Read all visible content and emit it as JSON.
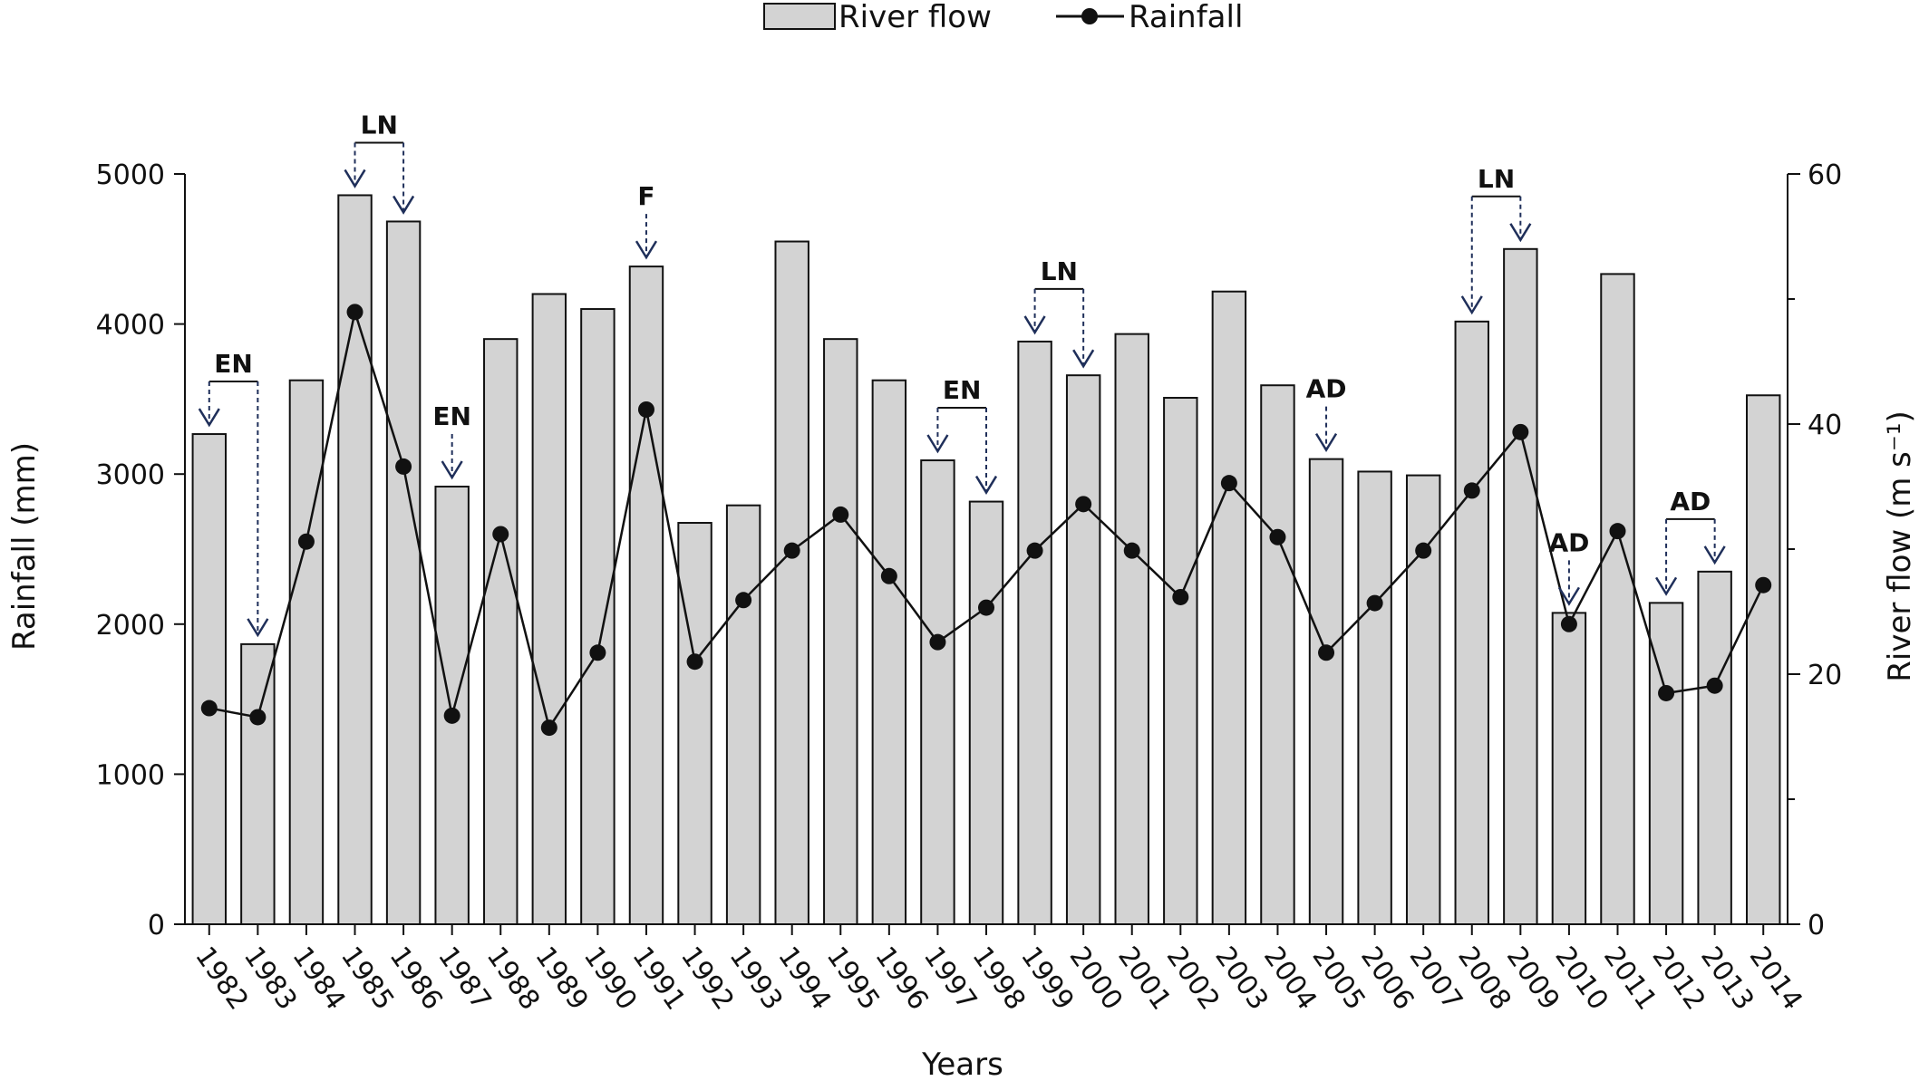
{
  "chart_data": {
    "type": "bar",
    "categories": [
      "1982",
      "1983",
      "1984",
      "1985",
      "1986",
      "1987",
      "1988",
      "1989",
      "1990",
      "1991",
      "1992",
      "1993",
      "1994",
      "1995",
      "1996",
      "1997",
      "1998",
      "1999",
      "2000",
      "2001",
      "2002",
      "2003",
      "2004",
      "2005",
      "2006",
      "2007",
      "2008",
      "2009",
      "2010",
      "2011",
      "2012",
      "2013",
      "2014"
    ],
    "series": [
      {
        "name": "River flow",
        "kind": "bar",
        "axis": "right",
        "color": "#d3d3d3",
        "values": [
          39.2,
          22.4,
          43.5,
          58.3,
          56.2,
          35.0,
          46.8,
          50.4,
          49.2,
          52.6,
          32.1,
          33.5,
          54.6,
          46.8,
          43.5,
          37.1,
          33.8,
          46.6,
          43.9,
          47.2,
          42.1,
          50.6,
          43.1,
          37.2,
          36.2,
          35.9,
          48.2,
          54.0,
          24.9,
          52.0,
          25.7,
          28.2,
          42.3
        ]
      },
      {
        "name": "Rainfall",
        "kind": "line",
        "axis": "left",
        "color": "#111111",
        "values": [
          1440,
          1380,
          2550,
          4080,
          3050,
          1390,
          2600,
          1310,
          1810,
          3430,
          1750,
          2160,
          2490,
          2730,
          2320,
          1880,
          2110,
          2490,
          2800,
          2490,
          2180,
          2940,
          2580,
          1810,
          2140,
          2490,
          2890,
          3280,
          2000,
          2620,
          1540,
          1590,
          2260
        ]
      }
    ],
    "xlabel": "Years",
    "ylabel": "Rainfall (mm)",
    "ylabel_right": "River flow (m s⁻¹)",
    "ylim": [
      0,
      5000
    ],
    "ylim_right": [
      0,
      60
    ],
    "yticks": [
      "0",
      "1000",
      "2000",
      "3000",
      "4000",
      "5000"
    ],
    "yticks_right": [
      "0",
      "20",
      "40",
      "60"
    ],
    "legend": {
      "placement": "top-center",
      "entries": [
        "River flow",
        "Rainfall"
      ]
    },
    "annotations": [
      {
        "label": "EN",
        "years": [
          "1982",
          "1983"
        ]
      },
      {
        "label": "LN",
        "years": [
          "1985",
          "1986"
        ]
      },
      {
        "label": "EN",
        "years": [
          "1987"
        ]
      },
      {
        "label": "F",
        "years": [
          "1991"
        ]
      },
      {
        "label": "EN",
        "years": [
          "1997",
          "1998"
        ]
      },
      {
        "label": "LN",
        "years": [
          "1999",
          "2000"
        ]
      },
      {
        "label": "AD",
        "years": [
          "2005"
        ]
      },
      {
        "label": "LN",
        "years": [
          "2008",
          "2009"
        ]
      },
      {
        "label": "AD",
        "years": [
          "2010"
        ]
      },
      {
        "label": "AD",
        "years": [
          "2012",
          "2013"
        ]
      }
    ],
    "grid": false
  }
}
